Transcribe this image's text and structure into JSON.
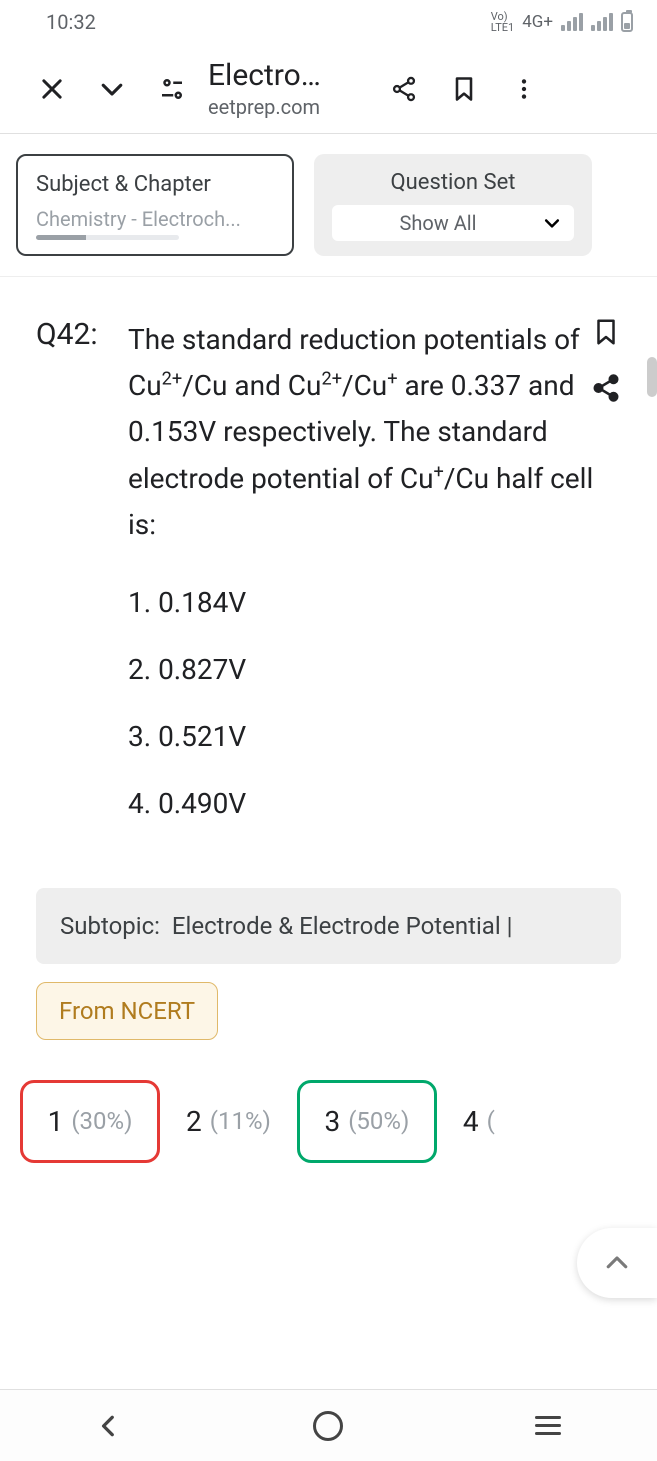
{
  "status": {
    "time": "10:32",
    "lte": "LTE1",
    "net": "4G+"
  },
  "chrome": {
    "title": "Electro…",
    "domain": "eetprep.com"
  },
  "filters": {
    "subject": {
      "label": "Subject & Chapter",
      "value": "Chemistry - Electroch..."
    },
    "set": {
      "label": "Question Set",
      "value": "Show All"
    }
  },
  "question": {
    "number": "Q42:",
    "stem_html": "The standard reduction potentials of Cu<sup>2+</sup>/Cu and Cu<sup>2+</sup>/Cu<sup>+</sup> are 0.337 and 0.153V respectively. The standard electrode potential of Cu<sup>+</sup>/Cu half cell is:",
    "options": [
      "1. 0.184V",
      "2. 0.827V",
      "3. 0.521V",
      "4. 0.490V"
    ],
    "subtopic_label": "Subtopic:  ",
    "subtopic_value": "Electrode & Electrode Potential |",
    "tag": "From NCERT"
  },
  "answers": [
    {
      "n": "1",
      "pct": "(30%)",
      "style": "red"
    },
    {
      "n": "2",
      "pct": "(11%)",
      "style": "plain"
    },
    {
      "n": "3",
      "pct": "(50%)",
      "style": "green"
    },
    {
      "n": "4",
      "pct": "(…)",
      "style": "plain"
    }
  ],
  "colors": {
    "red": "#e53935",
    "green": "#00a86b",
    "tag_bg": "#fdf6e7",
    "tag_border": "#e0b96a"
  }
}
